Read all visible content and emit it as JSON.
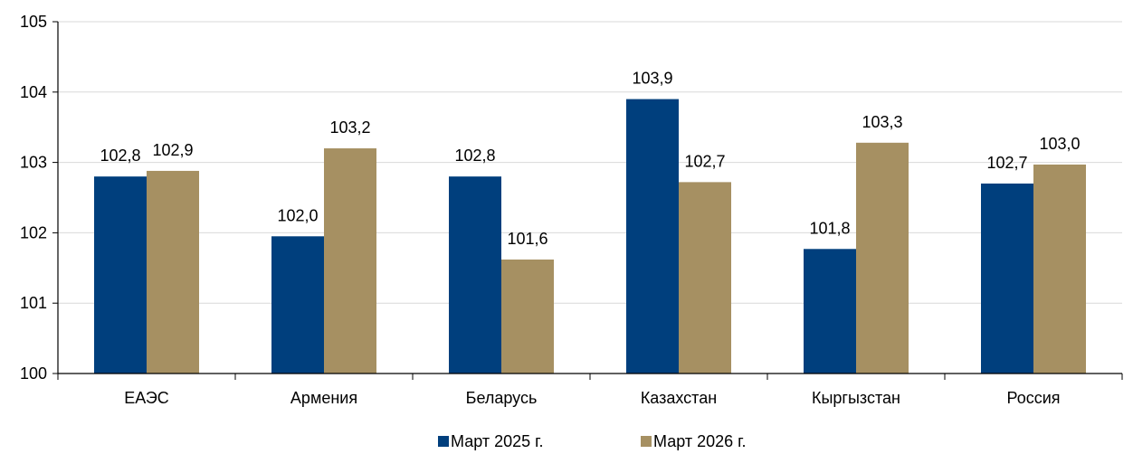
{
  "chart_data": {
    "type": "bar",
    "categories": [
      "ЕАЭС",
      "Армения",
      "Беларусь",
      "Казахстан",
      "Кыргызстан",
      "Россия"
    ],
    "series": [
      {
        "name": "Март 2025 г.",
        "color": "#003f7d",
        "values": [
          102.8,
          101.95,
          102.8,
          103.9,
          101.77,
          102.7
        ],
        "labels": [
          "102,8",
          "102,0",
          "102,8",
          "103,9",
          "101,8",
          "102,7"
        ]
      },
      {
        "name": "Март 2026 г.",
        "color": "#a69062",
        "values": [
          102.88,
          103.2,
          101.62,
          102.72,
          103.28,
          102.97
        ],
        "labels": [
          "102,9",
          "103,2",
          "101,6",
          "102,7",
          "103,3",
          "103,0"
        ]
      }
    ],
    "ylim": [
      100,
      105
    ],
    "yticks": [
      100,
      101,
      102,
      103,
      104,
      105
    ],
    "ytick_labels": [
      "100",
      "101",
      "102",
      "103",
      "104",
      "105"
    ],
    "grid": true,
    "legend_position": "bottom",
    "title": "",
    "xlabel": "",
    "ylabel": ""
  }
}
